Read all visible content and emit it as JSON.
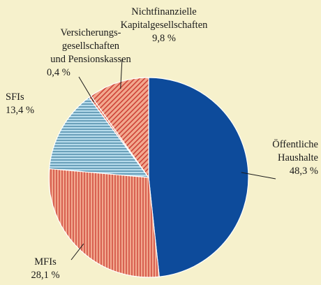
{
  "chart_data": {
    "type": "pie",
    "categories": [
      [
        "Öffentliche",
        "Haushalte"
      ],
      [
        "MFIs"
      ],
      [
        "SFIs"
      ],
      [
        "Versicherungs-",
        "gesellschaften",
        "und Pensionskassen"
      ],
      [
        "Nichtfinanzielle",
        "Kapitalgesellschaften"
      ]
    ],
    "values": [
      48.3,
      28.1,
      13.4,
      0.4,
      9.8
    ],
    "value_labels": [
      "48,3 %",
      "28,1 %",
      "13,4 %",
      "0,4 %",
      "9,8 %"
    ],
    "colors": [
      "#0d4b9b",
      "#e8927a",
      "#9fd0e4",
      "#e8927a",
      "#e8927a"
    ],
    "patterns": [
      "solid",
      "vertical",
      "horizontal",
      "diagonal",
      "diagonal"
    ]
  }
}
